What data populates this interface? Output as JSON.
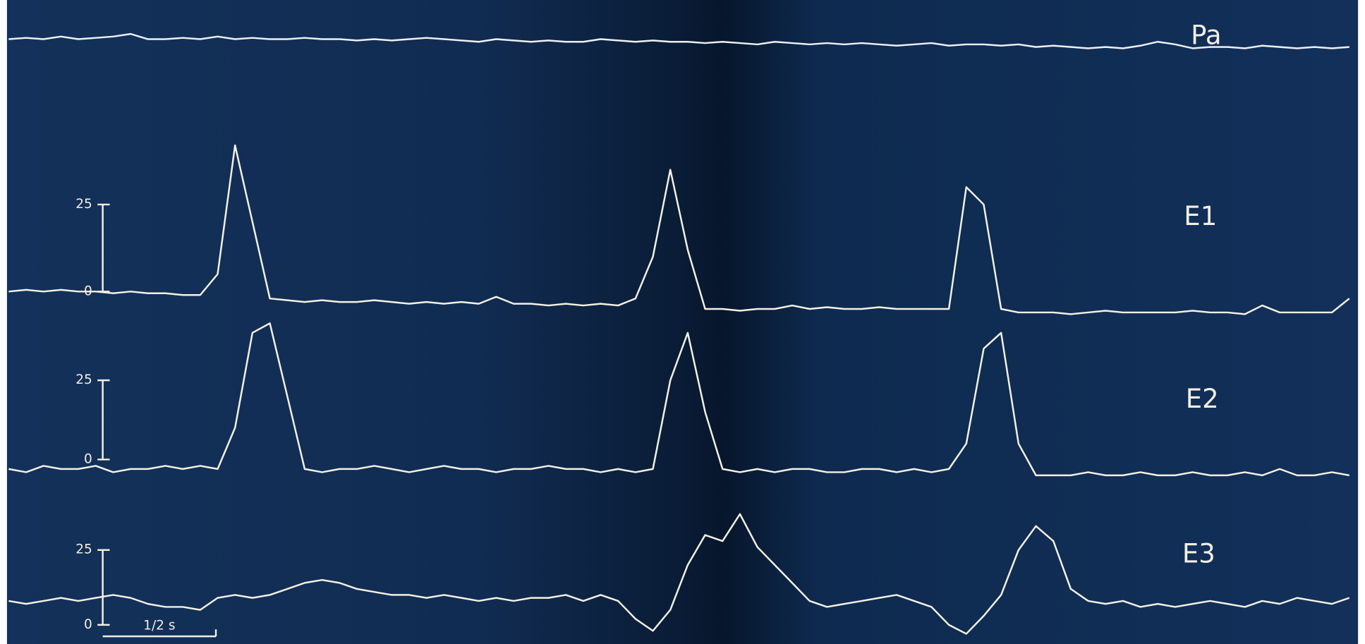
{
  "chart_data": [
    {
      "type": "line",
      "label": "Pa",
      "color": "#eef0f4",
      "ylim": [
        0,
        10
      ],
      "values": [
        5,
        5.5,
        5,
        6,
        5,
        5.5,
        6,
        7,
        5,
        5,
        5.5,
        5,
        6,
        5,
        5.5,
        5,
        5,
        5.5,
        5,
        5,
        4.5,
        5,
        4.5,
        5,
        5.5,
        5,
        4.5,
        4,
        5,
        4.5,
        4,
        4.5,
        4,
        4,
        5,
        4.5,
        4,
        4.5,
        4,
        4,
        3.5,
        4,
        3.5,
        3,
        4,
        3.5,
        3,
        3.5,
        3,
        3.5,
        3,
        2.5,
        3,
        3.5,
        2.5,
        3,
        3,
        2.5,
        3,
        2,
        2.5,
        2,
        1.5,
        2,
        1.5,
        2.5,
        4,
        3,
        1.5,
        2,
        2,
        1.5,
        2.5,
        2,
        1.5,
        2,
        1.5,
        2
      ]
    },
    {
      "type": "line",
      "label": "E1",
      "color": "#f4f1e4",
      "ylim": [
        -10,
        50
      ],
      "yticks": [
        0,
        25
      ],
      "values": [
        0,
        0.5,
        0,
        0.5,
        0,
        0,
        -0.5,
        0,
        -0.5,
        -0.5,
        -1,
        -1,
        5,
        42,
        20,
        -2,
        -2.5,
        -3,
        -2.5,
        -3,
        -3,
        -2.5,
        -3,
        -3.5,
        -3,
        -3.5,
        -3,
        -3.5,
        -1.5,
        -3.5,
        -3.5,
        -4,
        -3.5,
        -4,
        -3.5,
        -4,
        -2,
        10,
        35,
        12,
        -5,
        -5,
        -5.5,
        -5,
        -5,
        -4,
        -5,
        -4.5,
        -5,
        -5,
        -4.5,
        -5,
        -5,
        -5,
        -5,
        30,
        25,
        -5,
        -6,
        -6,
        -6,
        -6.5,
        -6,
        -5.5,
        -6,
        -6,
        -6,
        -6,
        -5.5,
        -6,
        -6,
        -6.5,
        -4,
        -6,
        -6,
        -6,
        -6,
        -2
      ]
    },
    {
      "type": "line",
      "label": "E2",
      "color": "#f4f1e4",
      "ylim": [
        -5,
        45
      ],
      "yticks": [
        0,
        25
      ],
      "values": [
        -3,
        -4,
        -2,
        -3,
        -3,
        -2,
        -4,
        -3,
        -3,
        -2,
        -3,
        -2,
        -3,
        10,
        40,
        43,
        20,
        -3,
        -4,
        -3,
        -3,
        -2,
        -3,
        -4,
        -3,
        -2,
        -3,
        -3,
        -4,
        -3,
        -3,
        -2,
        -3,
        -3,
        -4,
        -3,
        -4,
        -3,
        25,
        40,
        15,
        -3,
        -4,
        -3,
        -4,
        -3,
        -3,
        -4,
        -4,
        -3,
        -3,
        -4,
        -3,
        -4,
        -3,
        5,
        35,
        40,
        5,
        -5,
        -5,
        -5,
        -4,
        -5,
        -5,
        -4,
        -5,
        -5,
        -4,
        -5,
        -5,
        -4,
        -5,
        -3,
        -5,
        -5,
        -4,
        -5
      ]
    },
    {
      "type": "line",
      "label": "E3",
      "color": "#f4f1e4",
      "ylim": [
        -5,
        40
      ],
      "yticks": [
        0,
        25
      ],
      "xlabel": "1/2 s",
      "values": [
        8,
        7,
        8,
        9,
        8,
        9,
        10,
        9,
        7,
        6,
        6,
        5,
        9,
        10,
        9,
        10,
        12,
        14,
        15,
        14,
        12,
        11,
        10,
        10,
        9,
        10,
        9,
        8,
        9,
        8,
        9,
        9,
        10,
        8,
        10,
        8,
        2,
        -2,
        5,
        20,
        30,
        28,
        37,
        26,
        20,
        14,
        8,
        6,
        7,
        8,
        9,
        10,
        8,
        6,
        0,
        -3,
        3,
        10,
        25,
        33,
        28,
        12,
        8,
        7,
        8,
        6,
        7,
        6,
        7,
        8,
        7,
        6,
        8,
        7,
        9,
        8,
        7,
        9
      ]
    }
  ]
}
